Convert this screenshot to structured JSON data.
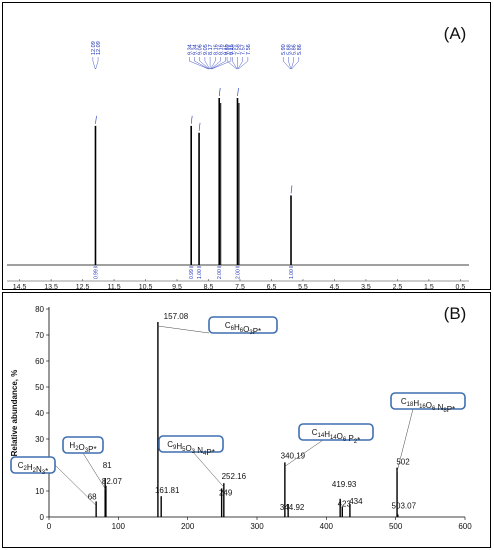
{
  "panel_a": {
    "letter": "(A)",
    "chart_data": {
      "type": "line",
      "xlabel": "",
      "ylabel": "",
      "xlim": [
        14.9,
        0.1
      ],
      "reversed_x": true,
      "x_ticks": [
        "14.5",
        "13.5",
        "12.5",
        "11.5",
        "10.5",
        "9.5",
        "8.5",
        "7.5",
        "6.5",
        "5.5",
        "4.5",
        "3.5",
        "2.5",
        "1.5",
        "0.5"
      ],
      "peaks": [
        {
          "shift": 12.09,
          "height": 1.0
        },
        {
          "shift": 9.05,
          "height": 1.0
        },
        {
          "shift": 8.8,
          "height": 0.95
        },
        {
          "shift": 8.16,
          "height": 1.2
        },
        {
          "shift": 7.58,
          "height": 1.2
        },
        {
          "shift": 5.88,
          "height": 0.5
        }
      ],
      "shift_label_groups": [
        {
          "labels": [
            "12.09",
            "12.09"
          ],
          "at": 12.09
        },
        {
          "labels": [
            "9.34",
            "9.34",
            "9.06",
            "9.05",
            "8.17",
            "8.16",
            "8.16",
            "8.15",
            "8.15"
          ],
          "at": 8.45
        },
        {
          "labels": [
            "7.59",
            "7.59",
            "7.58",
            "7.57",
            "7.56"
          ],
          "at": 7.58
        },
        {
          "labels": [
            "5.90",
            "5.88",
            "5.86",
            "5.86"
          ],
          "at": 5.88
        }
      ],
      "integrals": [
        {
          "at": 12.09,
          "label": "0.99"
        },
        {
          "at": 9.05,
          "label": "0.99"
        },
        {
          "at": 8.8,
          "label": "1.00"
        },
        {
          "at": 8.16,
          "label": "2.00"
        },
        {
          "at": 7.58,
          "label": "2.00"
        },
        {
          "at": 5.88,
          "label": "1.00"
        }
      ],
      "grid": false
    }
  },
  "panel_b": {
    "letter": "(B)",
    "chart_data": {
      "type": "bar",
      "xlabel": "",
      "ylabel": "Relative abundance, %",
      "xlim": [
        0,
        600
      ],
      "ylim": [
        0,
        80
      ],
      "x_ticks": [
        0,
        100,
        200,
        300,
        400,
        500,
        600
      ],
      "y_ticks": [
        0,
        10,
        20,
        30,
        40,
        50,
        60,
        70,
        80
      ],
      "peaks": [
        {
          "mz": 68,
          "abundance": 6,
          "label": "68"
        },
        {
          "mz": 81,
          "abundance": 15,
          "label": "81"
        },
        {
          "mz": 82.07,
          "abundance": 12,
          "label": "82.07"
        },
        {
          "mz": 157.08,
          "abundance": 75,
          "label": "157.08"
        },
        {
          "mz": 161.81,
          "abundance": 8,
          "label": "161.81"
        },
        {
          "mz": 249,
          "abundance": 11,
          "label": "249"
        },
        {
          "mz": 252.16,
          "abundance": 13,
          "label": "252.16"
        },
        {
          "mz": 340.19,
          "abundance": 21,
          "label": "340.19"
        },
        {
          "mz": 344.92,
          "abundance": 5,
          "label": "344.92"
        },
        {
          "mz": 419.93,
          "abundance": 7,
          "label": "419.93"
        },
        {
          "mz": 423,
          "abundance": 4,
          "label": "423"
        },
        {
          "mz": 434,
          "abundance": 5,
          "label": "434"
        },
        {
          "mz": 502,
          "abundance": 19,
          "label": "502"
        },
        {
          "mz": 503.07,
          "abundance": 1,
          "label": "503.07"
        }
      ],
      "callouts": [
        {
          "formula": [
            [
              "C",
              "n"
            ],
            [
              "2",
              "s"
            ],
            [
              "H",
              "n"
            ],
            [
              "2",
              "s"
            ],
            [
              "N",
              "n"
            ],
            [
              "3",
              "s"
            ],
            [
              "*",
              "n"
            ]
          ],
          "target_mz": 68
        },
        {
          "formula": [
            [
              "H",
              "n"
            ],
            [
              "2",
              "s"
            ],
            [
              "O",
              "n"
            ],
            [
              "3",
              "s"
            ],
            [
              "P*",
              "n"
            ]
          ],
          "target_mz": 82.07
        },
        {
          "formula": [
            [
              "C",
              "n"
            ],
            [
              "6",
              "s"
            ],
            [
              "H",
              "n"
            ],
            [
              "6",
              "s"
            ],
            [
              "O",
              "n"
            ],
            [
              "3",
              "s"
            ],
            [
              "P*",
              "n"
            ]
          ],
          "target_mz": 157.08
        },
        {
          "formula": [
            [
              "C",
              "n"
            ],
            [
              "9",
              "s"
            ],
            [
              "H",
              "n"
            ],
            [
              "5",
              "s"
            ],
            [
              "O",
              "n"
            ],
            [
              "3",
              "s"
            ],
            [
              " N",
              "n"
            ],
            [
              "4",
              "s"
            ],
            [
              "P*",
              "n"
            ]
          ],
          "target_mz": 252.16
        },
        {
          "formula": [
            [
              "C",
              "n"
            ],
            [
              "14",
              "s"
            ],
            [
              "H",
              "n"
            ],
            [
              "14",
              "s"
            ],
            [
              "O",
              "n"
            ],
            [
              "6",
              "s"
            ],
            [
              " P",
              "n"
            ],
            [
              "2",
              "s"
            ],
            [
              "*",
              "n"
            ]
          ],
          "target_mz": 340.19
        },
        {
          "formula": [
            [
              "C",
              "n"
            ],
            [
              "18",
              "s"
            ],
            [
              "H",
              "n"
            ],
            [
              "16",
              "s"
            ],
            [
              "O",
              "n"
            ],
            [
              "6",
              "s"
            ],
            [
              " N",
              "n"
            ],
            [
              "8",
              "s"
            ],
            [
              "P*",
              "n"
            ]
          ],
          "target_mz": 502
        }
      ],
      "grid": false
    }
  },
  "colors": {
    "peak_label": "#1b2fb8",
    "integral": "#1b2fb8",
    "callout_border": "#3f6fb0",
    "spectrum": "#000000"
  }
}
